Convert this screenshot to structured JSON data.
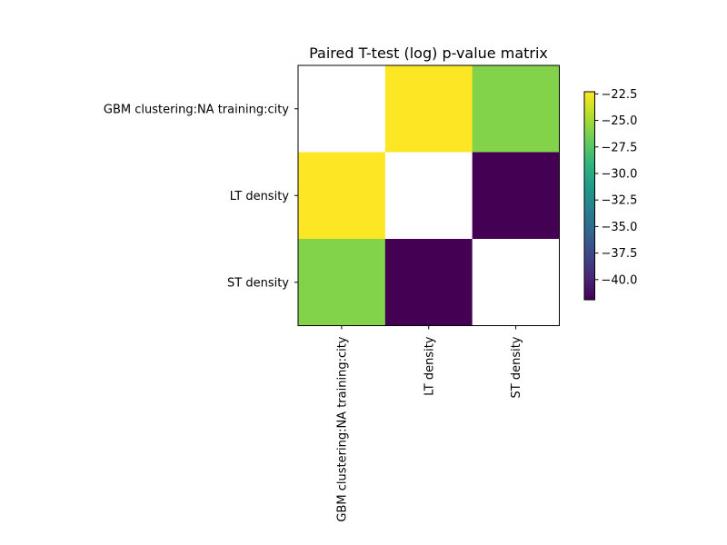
{
  "chart_data": {
    "type": "heatmap",
    "title": "Paired T-test (log) p-value matrix",
    "xlabel": "",
    "ylabel": "",
    "rows": [
      "GBM clustering:NA training:city",
      "LT density",
      "ST density"
    ],
    "columns": [
      "GBM clustering:NA training:city",
      "LT density",
      "ST density"
    ],
    "values": [
      [
        null,
        -22.3,
        -26.0
      ],
      [
        -22.3,
        null,
        -41.9
      ],
      [
        -26.0,
        -41.9,
        null
      ]
    ],
    "missing_color": "#ffffff",
    "colormap": "viridis",
    "colorbar": {
      "range": [
        -41.9,
        -22.3
      ],
      "ticks": [
        -22.5,
        -25.0,
        -27.5,
        -30.0,
        -32.5,
        -35.0,
        -37.5,
        -40.0
      ],
      "tick_labels": [
        "−22.5",
        "−25.0",
        "−27.5",
        "−30.0",
        "−32.5",
        "−35.0",
        "−37.5",
        "−40.0"
      ]
    },
    "grid": false,
    "legend": "none"
  },
  "colors": {
    "viridis": [
      "#440154",
      "#482878",
      "#3e4989",
      "#31688e",
      "#26828e",
      "#1f9e89",
      "#35b779",
      "#6ece58",
      "#b5de2b",
      "#fde725"
    ]
  }
}
